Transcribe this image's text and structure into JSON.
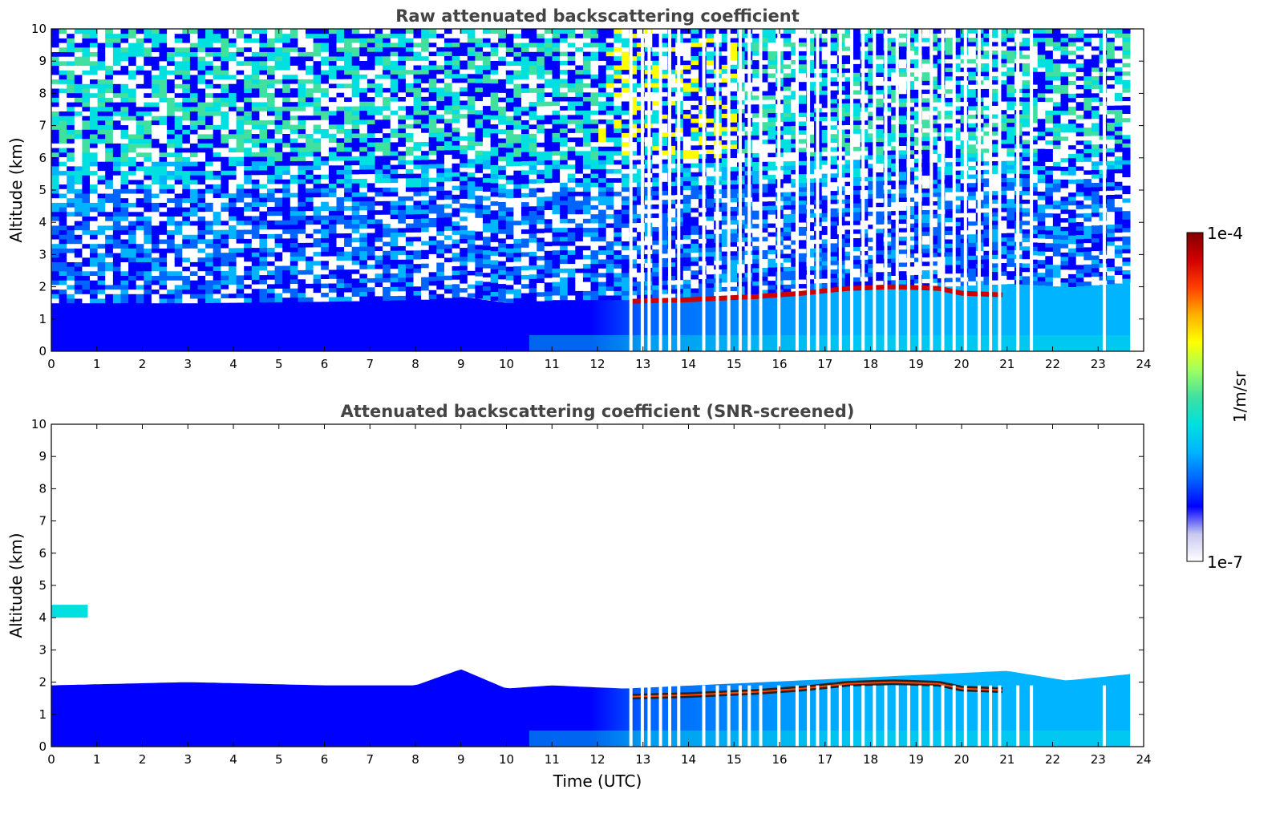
{
  "chart_data": [
    {
      "type": "heatmap",
      "title": "Raw attenuated backscattering coefficient",
      "xlabel": "",
      "ylabel": "Altitude (km)",
      "xlim": [
        0,
        24
      ],
      "ylim": [
        0,
        10
      ],
      "xticks": [
        "0",
        "1",
        "2",
        "3",
        "4",
        "5",
        "6",
        "7",
        "8",
        "9",
        "10",
        "11",
        "12",
        "13",
        "14",
        "15",
        "16",
        "17",
        "18",
        "19",
        "20",
        "21",
        "22",
        "23",
        "24"
      ],
      "yticks": [
        "0",
        "1",
        "2",
        "3",
        "4",
        "5",
        "6",
        "7",
        "8",
        "9",
        "10"
      ],
      "x_end": 23.7,
      "cloud_base": [
        {
          "x": 12.7,
          "y": 1.55
        },
        {
          "x": 14.0,
          "y": 1.6
        },
        {
          "x": 15.5,
          "y": 1.7
        },
        {
          "x": 16.5,
          "y": 1.8
        },
        {
          "x": 17.5,
          "y": 1.95
        },
        {
          "x": 18.5,
          "y": 2.0
        },
        {
          "x": 19.5,
          "y": 1.95
        },
        {
          "x": 20.0,
          "y": 1.8
        },
        {
          "x": 20.9,
          "y": 1.75
        }
      ],
      "boundary_layer_top": [
        {
          "x": 0,
          "y": 1.5
        },
        {
          "x": 3,
          "y": 1.5
        },
        {
          "x": 6,
          "y": 1.55
        },
        {
          "x": 8,
          "y": 1.6
        },
        {
          "x": 9,
          "y": 1.7
        },
        {
          "x": 10,
          "y": 1.5
        },
        {
          "x": 11,
          "y": 1.6
        },
        {
          "x": 12.6,
          "y": 1.6
        },
        {
          "x": 21.0,
          "y": 2.1
        },
        {
          "x": 22.3,
          "y": 2.0
        },
        {
          "x": 23.7,
          "y": 2.15
        }
      ],
      "data_gaps_x": [
        12.7,
        12.95,
        13.1,
        13.35,
        13.55,
        13.75,
        14.3,
        14.6,
        14.85,
        15.1,
        15.3,
        15.55,
        15.95,
        16.35,
        16.6,
        16.8,
        17.05,
        17.3,
        17.55,
        17.8,
        18.05,
        18.3,
        18.55,
        18.8,
        19.05,
        19.3,
        19.55,
        19.8,
        20.05,
        20.35,
        20.6,
        20.8,
        21.2,
        21.5,
        23.1
      ]
    },
    {
      "type": "heatmap",
      "title": "Attenuated backscattering coefficient (SNR-screened)",
      "xlabel": "Time (UTC)",
      "ylabel": "Altitude (km)",
      "xlim": [
        0,
        24
      ],
      "ylim": [
        0,
        10
      ],
      "xticks": [
        "0",
        "1",
        "2",
        "3",
        "4",
        "5",
        "6",
        "7",
        "8",
        "9",
        "10",
        "11",
        "12",
        "13",
        "14",
        "15",
        "16",
        "17",
        "18",
        "19",
        "20",
        "21",
        "22",
        "23",
        "24"
      ],
      "yticks": [
        "0",
        "1",
        "2",
        "3",
        "4",
        "5",
        "6",
        "7",
        "8",
        "9",
        "10"
      ],
      "x_end": 23.7,
      "elevated_layer": {
        "x": [
          0,
          0.8
        ],
        "y": [
          4.0,
          4.4
        ]
      },
      "boundary_layer_top": [
        {
          "x": 0,
          "y": 1.9
        },
        {
          "x": 3,
          "y": 2.0
        },
        {
          "x": 6,
          "y": 1.9
        },
        {
          "x": 8,
          "y": 1.9
        },
        {
          "x": 9,
          "y": 2.4
        },
        {
          "x": 10,
          "y": 1.8
        },
        {
          "x": 11,
          "y": 1.9
        },
        {
          "x": 12.6,
          "y": 1.8
        },
        {
          "x": 21.0,
          "y": 2.35
        },
        {
          "x": 22.3,
          "y": 2.05
        },
        {
          "x": 23.7,
          "y": 2.25
        }
      ]
    }
  ],
  "colorbar": {
    "label": "1/m/sr",
    "max_label": "1e-4",
    "min_label": "1e-7",
    "colormap": [
      "#ffffff",
      "#c8c8f0",
      "#0000ff",
      "#0064ff",
      "#00b4ff",
      "#00e0e0",
      "#40e0a0",
      "#a0ff60",
      "#ffff00",
      "#ffb000",
      "#ff4000",
      "#d00000",
      "#800000"
    ]
  }
}
